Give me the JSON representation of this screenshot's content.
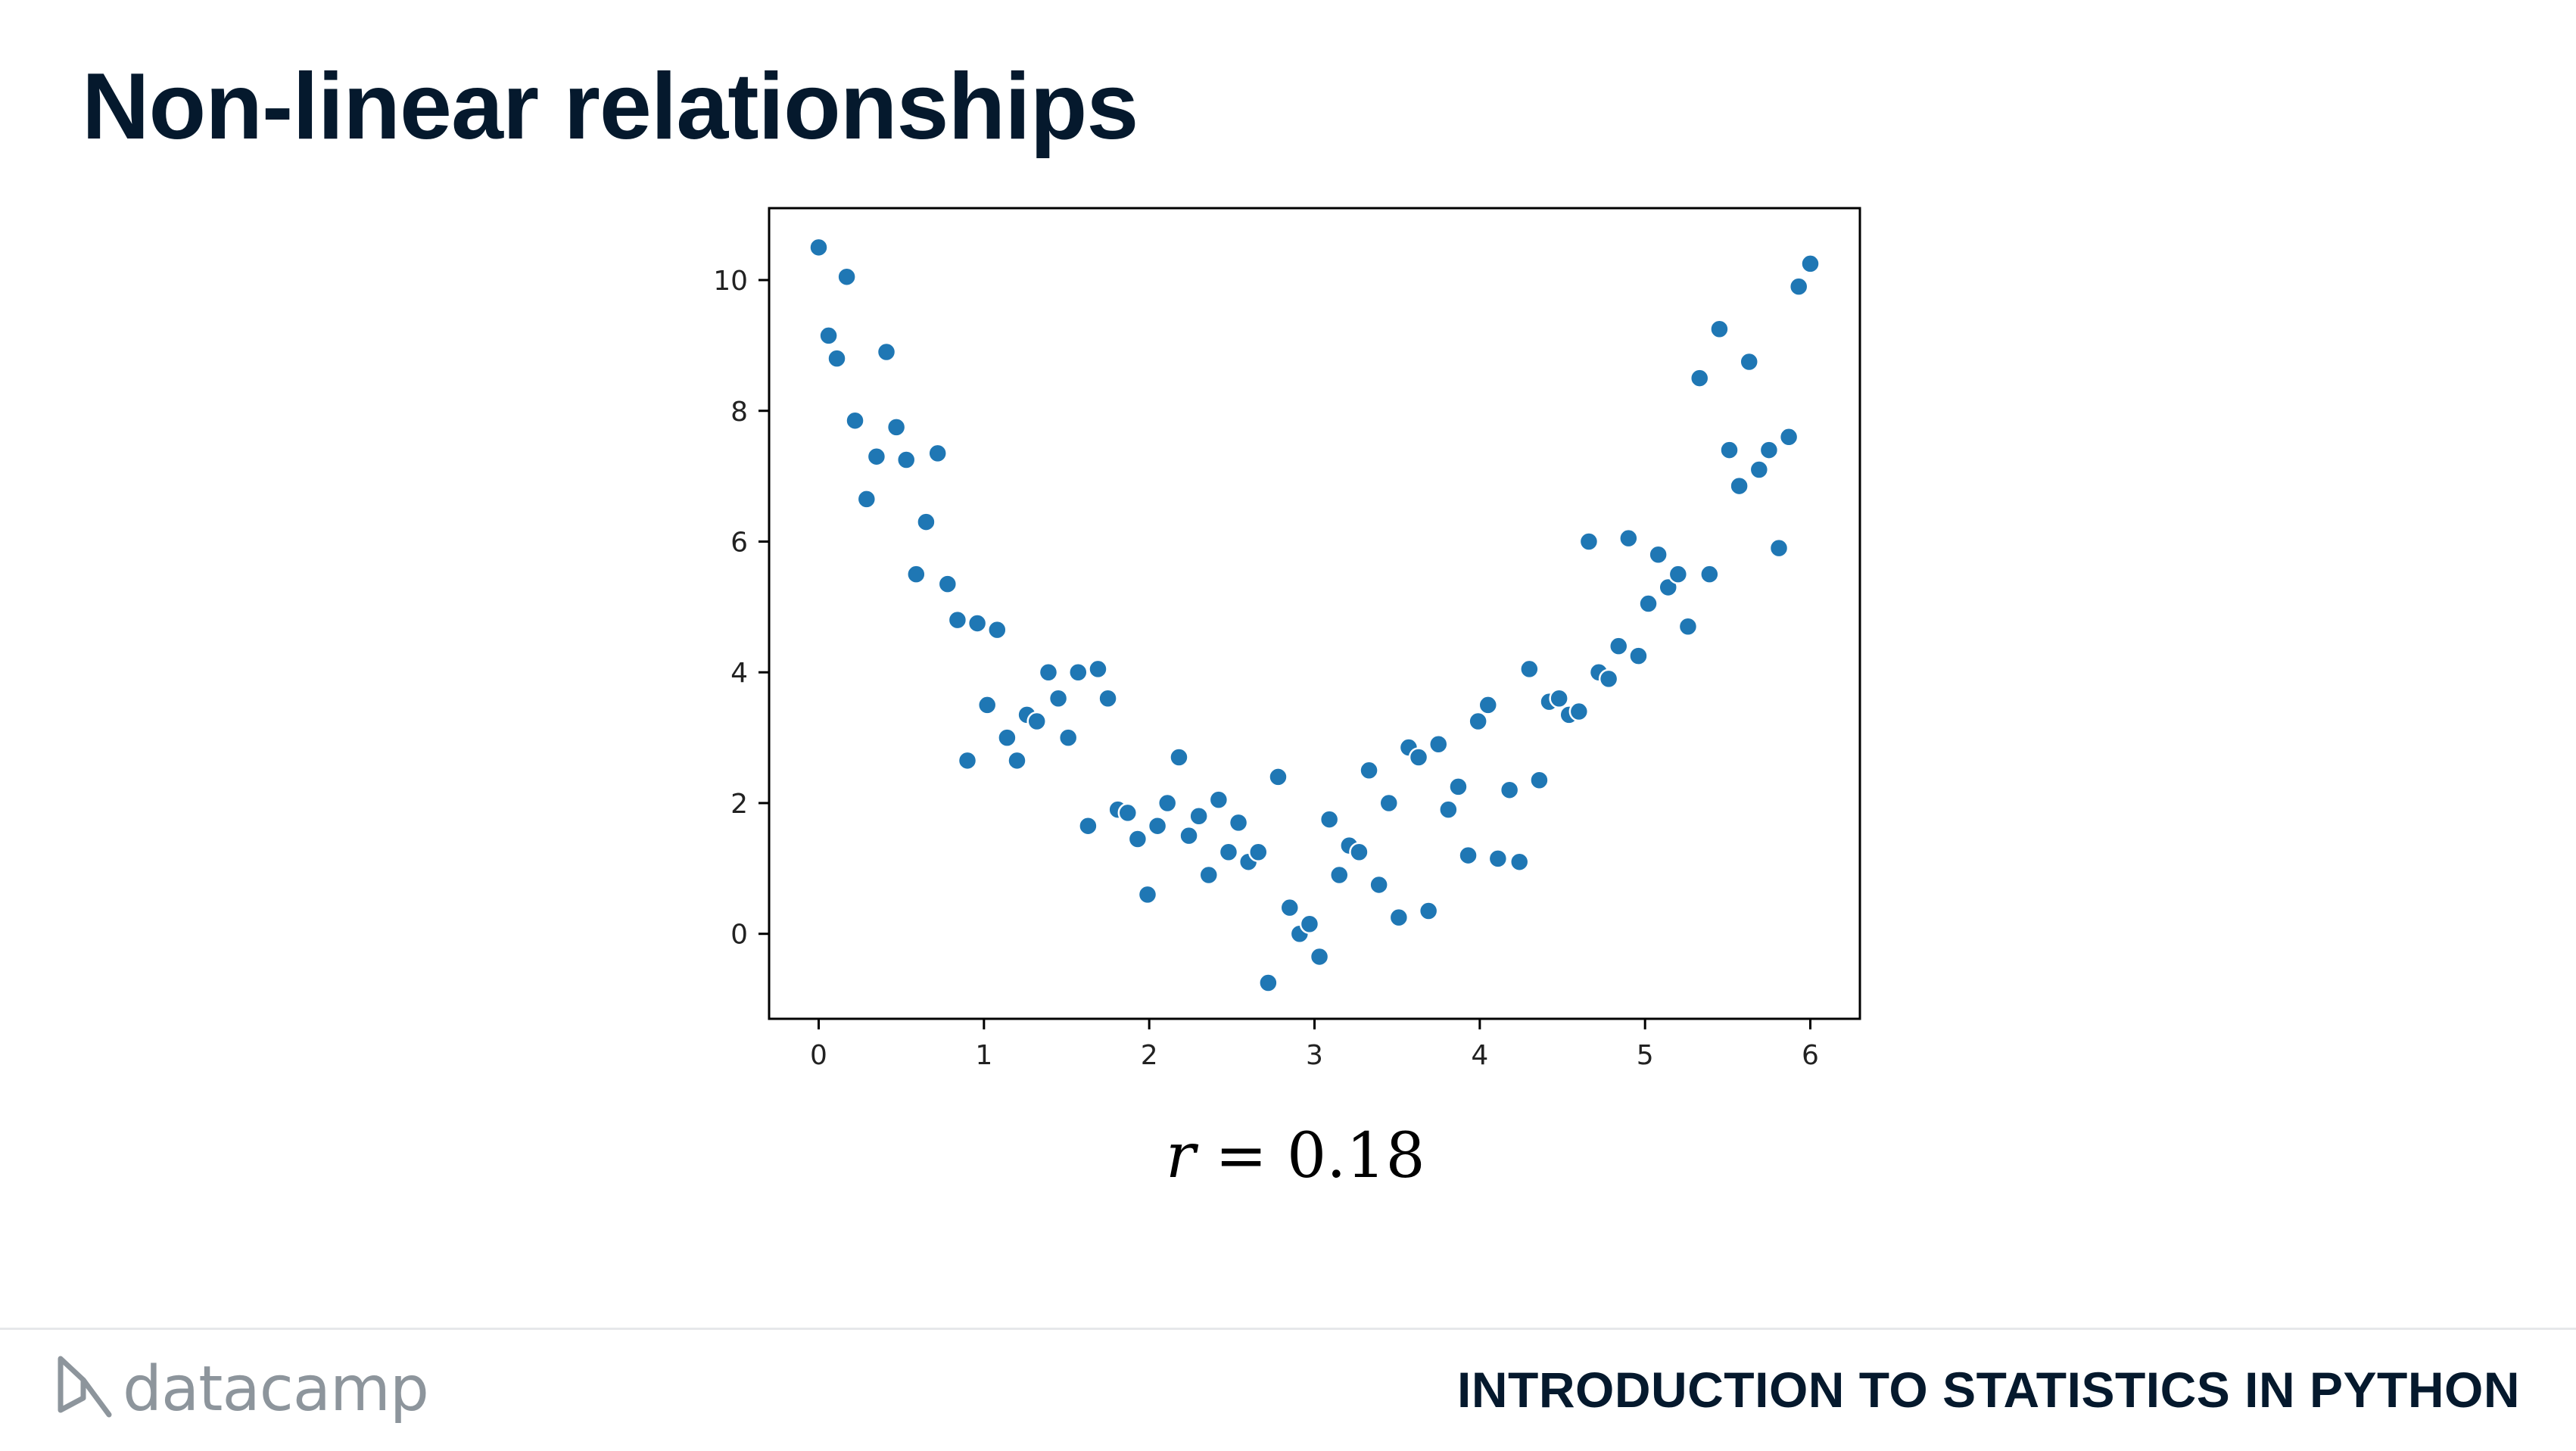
{
  "slide": {
    "title": "Non-linear relationships",
    "formula_var": "r",
    "formula_rest": " = 0.18"
  },
  "footer": {
    "brand": "datacamp",
    "course": "INTRODUCTION TO STATISTICS IN PYTHON"
  },
  "colors": {
    "point": "#1f77b4",
    "title": "#05192d",
    "brand_gray": "#8d959c"
  },
  "chart_data": {
    "type": "scatter",
    "title": "",
    "xlabel": "",
    "ylabel": "",
    "xlim": [
      -0.3,
      6.3
    ],
    "ylim": [
      -1.3,
      11.1
    ],
    "xticks": [
      0,
      1,
      2,
      3,
      4,
      5,
      6
    ],
    "yticks": [
      0,
      2,
      4,
      6,
      8,
      10
    ],
    "grid": false,
    "legend": "none",
    "points": [
      [
        0.0,
        10.5
      ],
      [
        0.06,
        9.15
      ],
      [
        0.11,
        8.8
      ],
      [
        0.17,
        10.05
      ],
      [
        0.22,
        7.85
      ],
      [
        0.29,
        6.65
      ],
      [
        0.35,
        7.3
      ],
      [
        0.41,
        8.9
      ],
      [
        0.47,
        7.75
      ],
      [
        0.53,
        7.25
      ],
      [
        0.59,
        5.5
      ],
      [
        0.65,
        6.3
      ],
      [
        0.72,
        7.35
      ],
      [
        0.78,
        5.35
      ],
      [
        0.84,
        4.8
      ],
      [
        0.9,
        2.65
      ],
      [
        0.96,
        4.75
      ],
      [
        1.02,
        3.5
      ],
      [
        1.08,
        4.65
      ],
      [
        1.14,
        3.0
      ],
      [
        1.2,
        2.65
      ],
      [
        1.26,
        3.35
      ],
      [
        1.32,
        3.25
      ],
      [
        1.39,
        4.0
      ],
      [
        1.45,
        3.6
      ],
      [
        1.51,
        3.0
      ],
      [
        1.57,
        4.0
      ],
      [
        1.63,
        1.65
      ],
      [
        1.69,
        4.05
      ],
      [
        1.75,
        3.6
      ],
      [
        1.81,
        1.9
      ],
      [
        1.87,
        1.85
      ],
      [
        1.93,
        1.45
      ],
      [
        1.99,
        0.6
      ],
      [
        2.05,
        1.65
      ],
      [
        2.11,
        2.0
      ],
      [
        2.18,
        2.7
      ],
      [
        2.24,
        1.5
      ],
      [
        2.3,
        1.8
      ],
      [
        2.36,
        0.9
      ],
      [
        2.42,
        2.05
      ],
      [
        2.48,
        1.25
      ],
      [
        2.54,
        1.7
      ],
      [
        2.6,
        1.1
      ],
      [
        2.66,
        1.25
      ],
      [
        2.72,
        -0.75
      ],
      [
        2.78,
        2.4
      ],
      [
        2.85,
        0.4
      ],
      [
        2.91,
        0.0
      ],
      [
        2.97,
        0.15
      ],
      [
        3.03,
        -0.35
      ],
      [
        3.09,
        1.75
      ],
      [
        3.15,
        0.9
      ],
      [
        3.21,
        1.35
      ],
      [
        3.27,
        1.25
      ],
      [
        3.33,
        2.5
      ],
      [
        3.39,
        0.75
      ],
      [
        3.45,
        2.0
      ],
      [
        3.51,
        0.25
      ],
      [
        3.57,
        2.85
      ],
      [
        3.63,
        2.7
      ],
      [
        3.69,
        0.35
      ],
      [
        3.75,
        2.9
      ],
      [
        3.81,
        1.9
      ],
      [
        3.87,
        2.25
      ],
      [
        3.93,
        1.2
      ],
      [
        3.99,
        3.25
      ],
      [
        4.05,
        3.5
      ],
      [
        4.11,
        1.15
      ],
      [
        4.18,
        2.2
      ],
      [
        4.24,
        1.1
      ],
      [
        4.3,
        4.05
      ],
      [
        4.36,
        2.35
      ],
      [
        4.42,
        3.55
      ],
      [
        4.48,
        3.6
      ],
      [
        4.54,
        3.35
      ],
      [
        4.6,
        3.4
      ],
      [
        4.66,
        6.0
      ],
      [
        4.72,
        4.0
      ],
      [
        4.78,
        3.9
      ],
      [
        4.84,
        4.4
      ],
      [
        4.9,
        6.05
      ],
      [
        4.96,
        4.25
      ],
      [
        5.02,
        5.05
      ],
      [
        5.08,
        5.8
      ],
      [
        5.14,
        5.3
      ],
      [
        5.2,
        5.5
      ],
      [
        5.26,
        4.7
      ],
      [
        5.33,
        8.5
      ],
      [
        5.39,
        5.5
      ],
      [
        5.45,
        9.25
      ],
      [
        5.51,
        7.4
      ],
      [
        5.57,
        6.85
      ],
      [
        5.63,
        8.75
      ],
      [
        5.69,
        7.1
      ],
      [
        5.75,
        7.4
      ],
      [
        5.81,
        5.9
      ],
      [
        5.87,
        7.6
      ],
      [
        5.93,
        9.9
      ],
      [
        6.0,
        10.25
      ]
    ]
  }
}
